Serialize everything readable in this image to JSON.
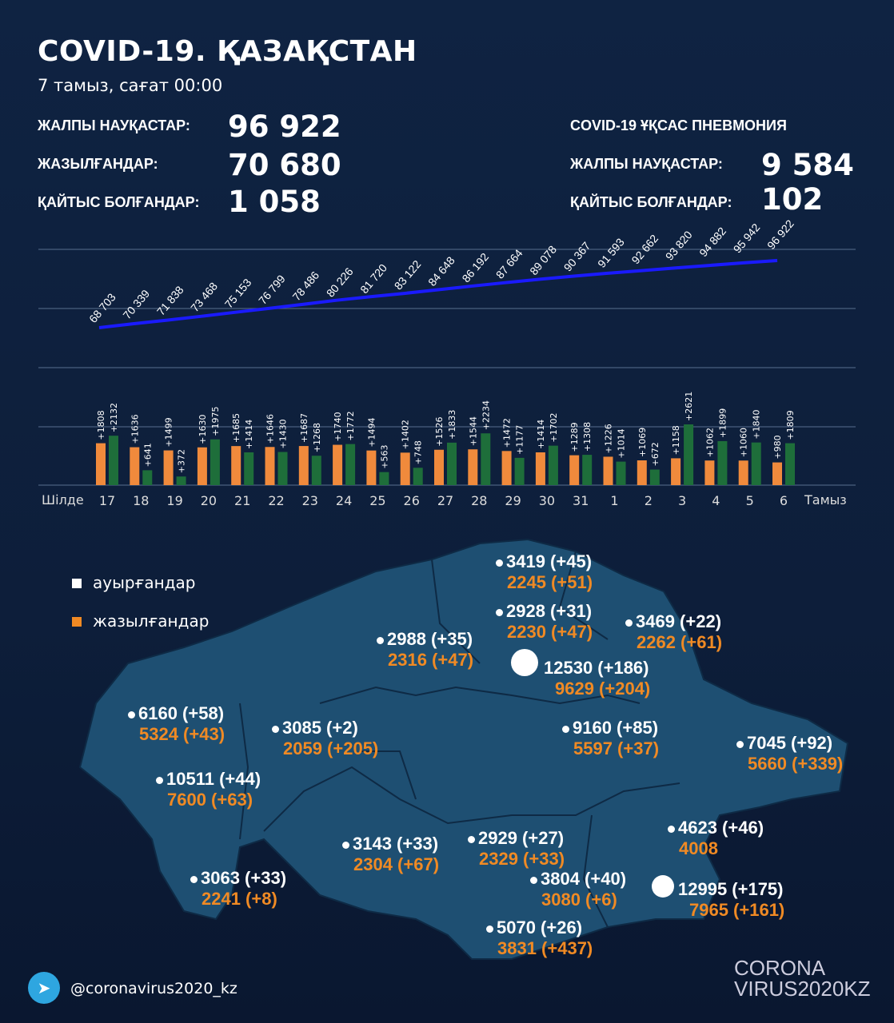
{
  "header": {
    "title": "COVID-19. ҚАЗАҚСТАН",
    "date": "7 тамыз, сағат 00:00"
  },
  "stats": {
    "total_label": "ЖАЛПЫ НАУҚАСТАР:",
    "total": "96 922",
    "recovered_label": "ЖАЗЫЛҒАНДАР:",
    "recovered": "70 680",
    "deaths_label": "ҚАЙТЫС БОЛҒАНДАР:",
    "deaths": "1 058"
  },
  "pneumonia": {
    "heading": "COVID-19 ҰҚСАС ПНЕВМОНИЯ",
    "total_label": "ЖАЛПЫ НАУҚАСТАР:",
    "total": "9 584",
    "deaths_label": "ҚАЙТЫС БОЛҒАНДАР:",
    "deaths": "102"
  },
  "chart_data": [
    {
      "type": "line",
      "series": [
        {
          "values": [
            68703,
            70339,
            71838,
            73468,
            75153,
            76799,
            78486,
            80226,
            81720,
            83122,
            84648,
            86192,
            87664,
            89078,
            90367,
            91593,
            92662,
            93820,
            94882,
            95942,
            96922
          ],
          "labels": [
            "68 703",
            "70 339",
            "71 838",
            "73 468",
            "75 153",
            "76 799",
            "78 486",
            "80 226",
            "81 720",
            "83 122",
            "84 648",
            "86 192",
            "87 664",
            "89 078",
            "90 367",
            "91 593",
            "92 662",
            "93 820",
            "94 882",
            "95 942",
            "96 922"
          ]
        }
      ],
      "color": "#1a1aff",
      "grid": true
    },
    {
      "type": "bar",
      "categories": [
        "17",
        "18",
        "19",
        "20",
        "21",
        "22",
        "23",
        "24",
        "25",
        "26",
        "27",
        "28",
        "29",
        "30",
        "31",
        "1",
        "2",
        "3",
        "4",
        "5",
        "6"
      ],
      "month_start": "Шілде",
      "month_end": "Тамыз",
      "series": [
        {
          "values": [
            1808,
            1636,
            1499,
            1630,
            1685,
            1646,
            1687,
            1740,
            1494,
            1402,
            1526,
            1544,
            1472,
            1414,
            1289,
            1226,
            1069,
            1158,
            1062,
            1060,
            980
          ],
          "color": "#f08a3c"
        },
        {
          "values": [
            2132,
            641,
            372,
            1975,
            1414,
            1430,
            1268,
            1772,
            563,
            748,
            1833,
            2234,
            1177,
            1702,
            1308,
            1014,
            672,
            2621,
            1899,
            1840,
            1809
          ],
          "color": "#1e6e3a"
        }
      ],
      "grid": true
    }
  ],
  "legend": {
    "sick": "ауырғандар",
    "recovered": "жазылғандар",
    "sick_color": "#ffffff",
    "recovered_color": "#f08a24"
  },
  "regions": [
    {
      "sick": "3419 (+45)",
      "rec": "2245 (+51)"
    },
    {
      "sick": "2928 (+31)",
      "rec": "2230 (+47)"
    },
    {
      "sick": "3469 (+22)",
      "rec": "2262 (+61)"
    },
    {
      "sick": "2988 (+35)",
      "rec": "2316 (+47)"
    },
    {
      "sick": "12530 (+186)",
      "rec": "9629 (+204)"
    },
    {
      "sick": "6160 (+58)",
      "rec": "5324 (+43)"
    },
    {
      "sick": "3085 (+2)",
      "rec": "2059 (+205)"
    },
    {
      "sick": "9160 (+85)",
      "rec": "5597 (+37)"
    },
    {
      "sick": "7045 (+92)",
      "rec": "5660 (+339)"
    },
    {
      "sick": "10511 (+44)",
      "rec": "7600 (+63)"
    },
    {
      "sick": "4623 (+46)",
      "rec": "4008"
    },
    {
      "sick": "3143 (+33)",
      "rec": "2304 (+67)"
    },
    {
      "sick": "2929 (+27)",
      "rec": "2329 (+33)"
    },
    {
      "sick": "3063 (+33)",
      "rec": "2241 (+8)"
    },
    {
      "sick": "3804 (+40)",
      "rec": "3080 (+6)"
    },
    {
      "sick": "12995 (+175)",
      "rec": "7965 (+161)"
    },
    {
      "sick": "5070 (+26)",
      "rec": "3831 (+437)"
    }
  ],
  "footer": {
    "telegram": "@coronavirus2020_kz",
    "logo_top": "CORONA",
    "logo_bottom": "VIRUS2020KZ"
  }
}
